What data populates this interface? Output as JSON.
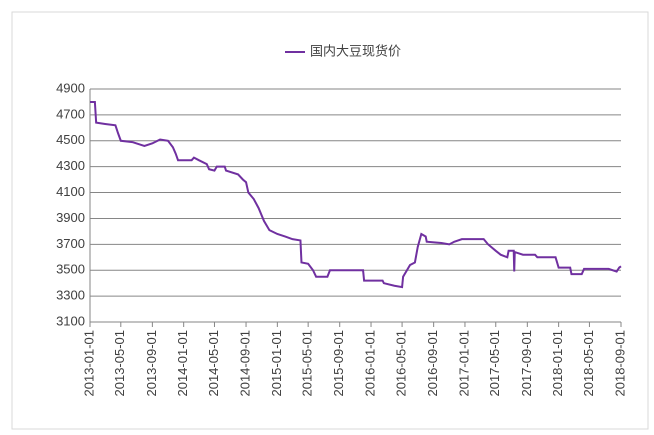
{
  "chart_data": {
    "type": "line",
    "x": [
      "2013-01-01",
      "2013-01-20",
      "2013-01-25",
      "2013-03-01",
      "2013-04-10",
      "2013-04-20",
      "2013-05-01",
      "2013-06-15",
      "2013-08-01",
      "2013-09-01",
      "2013-10-01",
      "2013-11-01",
      "2013-11-20",
      "2013-12-01",
      "2013-12-10",
      "2014-02-01",
      "2014-02-10",
      "2014-03-01",
      "2014-04-01",
      "2014-04-10",
      "2014-05-01",
      "2014-05-10",
      "2014-06-10",
      "2014-06-15",
      "2014-08-01",
      "2014-08-20",
      "2014-09-01",
      "2014-09-10",
      "2014-10-01",
      "2014-10-20",
      "2014-11-10",
      "2014-12-01",
      "2015-01-01",
      "2015-02-01",
      "2015-03-01",
      "2015-04-01",
      "2015-04-05",
      "2015-05-01",
      "2015-05-20",
      "2015-06-01",
      "2015-07-15",
      "2015-07-25",
      "2015-10-20",
      "2015-12-01",
      "2015-12-05",
      "2016-02-15",
      "2016-02-20",
      "2016-04-01",
      "2016-05-01",
      "2016-05-05",
      "2016-06-01",
      "2016-06-20",
      "2016-07-01",
      "2016-07-15",
      "2016-08-01",
      "2016-08-05",
      "2016-10-01",
      "2016-11-01",
      "2016-11-20",
      "2016-12-20",
      "2017-03-15",
      "2017-04-01",
      "2017-05-01",
      "2017-05-20",
      "2017-06-15",
      "2017-06-20",
      "2017-07-10",
      "2017-07-12",
      "2017-07-14",
      "2017-08-15",
      "2017-10-01",
      "2017-10-10",
      "2017-12-20",
      "2018-01-01",
      "2018-02-15",
      "2018-02-20",
      "2018-04-01",
      "2018-04-10",
      "2018-07-15",
      "2018-08-15",
      "2018-08-25",
      "2018-09-01"
    ],
    "series": [
      {
        "name": "国内大豆现货价",
        "color": "#7030a0",
        "values": [
          4800,
          4800,
          4640,
          4630,
          4620,
          4560,
          4500,
          4490,
          4460,
          4480,
          4510,
          4500,
          4450,
          4400,
          4350,
          4350,
          4370,
          4350,
          4320,
          4280,
          4270,
          4300,
          4300,
          4270,
          4240,
          4200,
          4180,
          4100,
          4050,
          3980,
          3880,
          3810,
          3780,
          3760,
          3740,
          3730,
          3560,
          3550,
          3500,
          3450,
          3450,
          3500,
          3500,
          3500,
          3420,
          3420,
          3400,
          3380,
          3370,
          3450,
          3540,
          3560,
          3680,
          3780,
          3760,
          3720,
          3710,
          3700,
          3720,
          3740,
          3740,
          3700,
          3650,
          3620,
          3600,
          3650,
          3650,
          3490,
          3640,
          3620,
          3620,
          3600,
          3600,
          3520,
          3520,
          3470,
          3470,
          3510,
          3510,
          3490,
          3520,
          3530
        ]
      }
    ],
    "xlim": [
      "2013-01-01",
      "2018-09-01"
    ],
    "xticks": [
      "2013-01-01",
      "2013-05-01",
      "2013-09-01",
      "2014-01-01",
      "2014-05-01",
      "2014-09-01",
      "2015-01-01",
      "2015-05-01",
      "2015-09-01",
      "2016-01-01",
      "2016-05-01",
      "2016-09-01",
      "2017-01-01",
      "2017-05-01",
      "2017-09-01",
      "2018-01-01",
      "2018-05-01",
      "2018-09-01"
    ],
    "ylim": [
      3100,
      4900
    ],
    "yticks": [
      3100,
      3300,
      3500,
      3700,
      3900,
      4100,
      4300,
      4500,
      4700,
      4900
    ],
    "grid": true,
    "legend": "top"
  }
}
